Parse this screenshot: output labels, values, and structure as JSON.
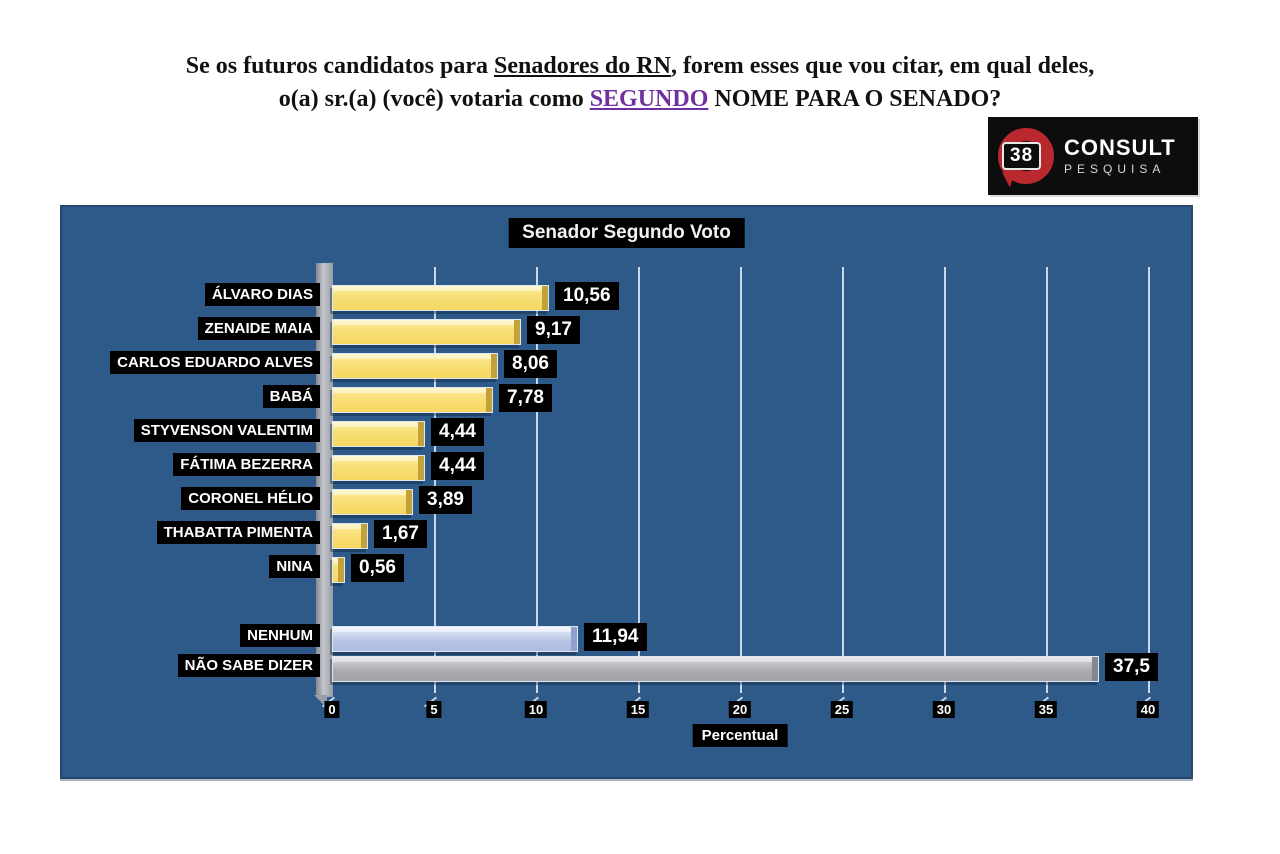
{
  "question": {
    "line1_pre": "Se os futuros candidatos para ",
    "line1_underlined": "Senadores do RN",
    "line1_post": ", forem esses que vou citar, em qual deles,",
    "line2_pre": "o(a) sr.(a) (você) votaria como ",
    "line2_underlined": "SEGUNDO",
    "line2_post": " NOME PARA O SENADO?"
  },
  "logo": {
    "number": "38",
    "title": "CONSULT",
    "subtitle": "PESQUISA"
  },
  "colors": {
    "chart_background": "#2d5a88",
    "gridline": "#c9d8e8",
    "bar_yellow": "#f8de72",
    "bar_blue": "#b7c4e3",
    "bar_gray": "#aaa9af",
    "label_background": "#000000",
    "label_text": "#ffffff",
    "question_accent_purple": "#7030a0",
    "logo_red": "#b9282e"
  },
  "chart_data": {
    "type": "bar",
    "orientation": "horizontal",
    "title": "Senador Segundo Voto",
    "xlabel": "Percentual",
    "xlim": [
      0,
      40
    ],
    "xticks": [
      0,
      5,
      10,
      15,
      20,
      25,
      30,
      35,
      40
    ],
    "grid": true,
    "legend": false,
    "rows": [
      {
        "label": "ÁLVARO DIAS",
        "value": 10.56,
        "value_label": "10,56",
        "color": "yellow"
      },
      {
        "label": "ZENAIDE MAIA",
        "value": 9.17,
        "value_label": "9,17",
        "color": "yellow"
      },
      {
        "label": "CARLOS EDUARDO ALVES",
        "value": 8.06,
        "value_label": "8,06",
        "color": "yellow"
      },
      {
        "label": "BABÁ",
        "value": 7.78,
        "value_label": "7,78",
        "color": "yellow"
      },
      {
        "label": "STYVENSON VALENTIM",
        "value": 4.44,
        "value_label": "4,44",
        "color": "yellow"
      },
      {
        "label": "FÁTIMA BEZERRA",
        "value": 4.44,
        "value_label": "4,44",
        "color": "yellow"
      },
      {
        "label": "CORONEL HÉLIO",
        "value": 3.89,
        "value_label": "3,89",
        "color": "yellow"
      },
      {
        "label": "THABATTA PIMENTA",
        "value": 1.67,
        "value_label": "1,67",
        "color": "yellow"
      },
      {
        "label": "NINA",
        "value": 0.56,
        "value_label": "0,56",
        "color": "yellow"
      },
      {
        "label": "NENHUM",
        "value": 11.94,
        "value_label": "11,94",
        "color": "blue"
      },
      {
        "label": "NÃO SABE DIZER",
        "value": 37.5,
        "value_label": "37,5",
        "color": "gray"
      }
    ]
  }
}
